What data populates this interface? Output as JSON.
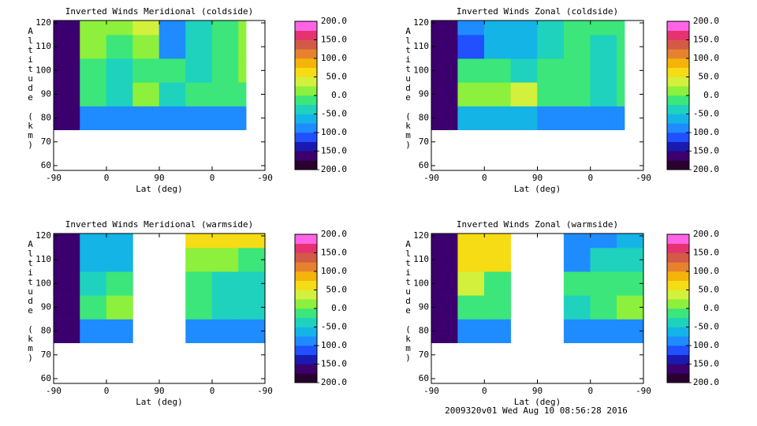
{
  "chart_data": [
    {
      "type": "heatmap",
      "title": "Inverted Winds Meridional (coldside)",
      "xlabel": "Lat (deg)",
      "ylabel": "Altitude (km)",
      "xlim": [
        0,
        360
      ],
      "xticks": [
        {
          "value": 0,
          "label": "-90"
        },
        {
          "value": 90,
          "label": "0"
        },
        {
          "value": 180,
          "label": "90"
        },
        {
          "value": 270,
          "label": "0"
        },
        {
          "value": 360,
          "label": "-90"
        }
      ],
      "ylim": [
        58,
        121
      ],
      "yticks": [
        60,
        70,
        80,
        90,
        100,
        110,
        120
      ],
      "x_edges": [
        0,
        45,
        90,
        135,
        180,
        225,
        270,
        315,
        328
      ],
      "y_edges": [
        75,
        85,
        95,
        105,
        115,
        121
      ],
      "values": [
        [
          -175,
          -80,
          -80,
          -80,
          -90,
          -90,
          -90,
          -80
        ],
        [
          -175,
          -20,
          -40,
          0,
          -30,
          -20,
          -10,
          -10
        ],
        [
          -175,
          -10,
          -50,
          -10,
          -20,
          -40,
          -10,
          10
        ],
        [
          -175,
          10,
          -20,
          10,
          -100,
          -30,
          -20,
          20
        ],
        [
          -175,
          20,
          10,
          30,
          -90,
          -40,
          -20,
          10
        ]
      ],
      "colorbar": {
        "lim": [
          -200,
          200
        ],
        "ticks": [
          {
            "value": 200,
            "label": "200.0"
          },
          {
            "value": 150,
            "label": "150.0"
          },
          {
            "value": 100,
            "label": "100.0"
          },
          {
            "value": 50,
            "label": "50.0"
          },
          {
            "value": 0,
            "label": "0.0"
          },
          {
            "value": -50,
            "label": "-50.0"
          },
          {
            "value": -100,
            "label": "-100.0"
          },
          {
            "value": -150,
            "label": "-150.0"
          },
          {
            "value": -200,
            "label": "-200.0"
          }
        ],
        "colors": [
          "#2a0030",
          "#3c006e",
          "#1a1ab0",
          "#2050ff",
          "#1e8cff",
          "#14b4e6",
          "#1ed2be",
          "#3ce67a",
          "#8cf03c",
          "#d2f03c",
          "#f5dc14",
          "#f5b40a",
          "#e6822d",
          "#d25a46",
          "#e6326e",
          "#ff64e6"
        ]
      }
    },
    {
      "type": "heatmap",
      "title": "Inverted Winds Zonal (coldside)",
      "xlabel": "Lat (deg)",
      "ylabel": "Altitude (km)",
      "xlim": [
        0,
        360
      ],
      "xticks": [
        {
          "value": 0,
          "label": "-90"
        },
        {
          "value": 90,
          "label": "0"
        },
        {
          "value": 180,
          "label": "90"
        },
        {
          "value": 270,
          "label": "0"
        },
        {
          "value": 360,
          "label": "-90"
        }
      ],
      "ylim": [
        58,
        121
      ],
      "yticks": [
        60,
        70,
        80,
        90,
        100,
        110,
        120
      ],
      "x_edges": [
        0,
        45,
        90,
        135,
        180,
        225,
        270,
        315,
        328
      ],
      "y_edges": [
        75,
        85,
        95,
        105,
        115,
        121
      ],
      "values": [
        [
          -175,
          -70,
          -60,
          -60,
          -80,
          -80,
          -80,
          -80
        ],
        [
          -175,
          10,
          20,
          30,
          -20,
          -10,
          -30,
          -10
        ],
        [
          -175,
          -20,
          -10,
          -40,
          -20,
          -10,
          -30,
          -20
        ],
        [
          -175,
          -120,
          -60,
          -60,
          -40,
          -10,
          -30,
          -20
        ],
        [
          -175,
          -100,
          -60,
          -60,
          -30,
          -20,
          -20,
          -10
        ]
      ],
      "colorbar": {
        "lim": [
          -200,
          200
        ],
        "ticks": [
          {
            "value": 200,
            "label": "200.0"
          },
          {
            "value": 150,
            "label": "150.0"
          },
          {
            "value": 100,
            "label": "100.0"
          },
          {
            "value": 50,
            "label": "50.0"
          },
          {
            "value": 0,
            "label": "0.0"
          },
          {
            "value": -50,
            "label": "-50.0"
          },
          {
            "value": -100,
            "label": "-100.0"
          },
          {
            "value": -150,
            "label": "-150.0"
          },
          {
            "value": -200,
            "label": "-200.0"
          }
        ],
        "colors": [
          "#2a0030",
          "#3c006e",
          "#1a1ab0",
          "#2050ff",
          "#1e8cff",
          "#14b4e6",
          "#1ed2be",
          "#3ce67a",
          "#8cf03c",
          "#d2f03c",
          "#f5dc14",
          "#f5b40a",
          "#e6822d",
          "#d25a46",
          "#e6326e",
          "#ff64e6"
        ]
      }
    },
    {
      "type": "heatmap",
      "title": "Inverted Winds Meridional (warmside)",
      "xlabel": "Lat (deg)",
      "ylabel": "Altitude (km)",
      "xlim": [
        0,
        360
      ],
      "xticks": [
        {
          "value": 0,
          "label": "-90"
        },
        {
          "value": 90,
          "label": "0"
        },
        {
          "value": 180,
          "label": "90"
        },
        {
          "value": 270,
          "label": "0"
        },
        {
          "value": 360,
          "label": "-90"
        }
      ],
      "ylim": [
        58,
        121
      ],
      "yticks": [
        60,
        70,
        80,
        90,
        100,
        110,
        120
      ],
      "x_edges": [
        0,
        45,
        90,
        135,
        180,
        225,
        270,
        315,
        360
      ],
      "y_edges": [
        75,
        85,
        95,
        105,
        115,
        121
      ],
      "values": [
        [
          -175,
          -90,
          -90,
          null,
          null,
          -80,
          -80,
          -90
        ],
        [
          -175,
          -20,
          10,
          null,
          null,
          -20,
          -40,
          -30
        ],
        [
          -175,
          -40,
          -20,
          null,
          null,
          -10,
          -30,
          -40
        ],
        [
          -175,
          -60,
          -60,
          null,
          null,
          10,
          20,
          -10
        ],
        [
          -175,
          -70,
          -60,
          null,
          null,
          60,
          60,
          60
        ]
      ],
      "colorbar": {
        "lim": [
          -200,
          200
        ],
        "ticks": [
          {
            "value": 200,
            "label": "200.0"
          },
          {
            "value": 150,
            "label": "150.0"
          },
          {
            "value": 100,
            "label": "100.0"
          },
          {
            "value": 50,
            "label": "50.0"
          },
          {
            "value": 0,
            "label": "0.0"
          },
          {
            "value": -50,
            "label": "-50.0"
          },
          {
            "value": -100,
            "label": "-100.0"
          },
          {
            "value": -150,
            "label": "-150.0"
          },
          {
            "value": -200,
            "label": "-200.0"
          }
        ],
        "colors": [
          "#2a0030",
          "#3c006e",
          "#1a1ab0",
          "#2050ff",
          "#1e8cff",
          "#14b4e6",
          "#1ed2be",
          "#3ce67a",
          "#8cf03c",
          "#d2f03c",
          "#f5dc14",
          "#f5b40a",
          "#e6822d",
          "#d25a46",
          "#e6326e",
          "#ff64e6"
        ]
      }
    },
    {
      "type": "heatmap",
      "title": "Inverted Winds Zonal (warmside)",
      "xlabel": "Lat (deg)",
      "ylabel": "Altitude (km)",
      "xlim": [
        0,
        360
      ],
      "xticks": [
        {
          "value": 0,
          "label": "-90"
        },
        {
          "value": 90,
          "label": "0"
        },
        {
          "value": 180,
          "label": "90"
        },
        {
          "value": 270,
          "label": "0"
        },
        {
          "value": 360,
          "label": "-90"
        }
      ],
      "ylim": [
        58,
        121
      ],
      "yticks": [
        60,
        70,
        80,
        90,
        100,
        110,
        120
      ],
      "x_edges": [
        0,
        45,
        90,
        135,
        180,
        225,
        270,
        315,
        360
      ],
      "y_edges": [
        75,
        85,
        95,
        105,
        115,
        121
      ],
      "values": [
        [
          -175,
          -80,
          -80,
          null,
          null,
          -90,
          -90,
          -90
        ],
        [
          -175,
          -10,
          -20,
          null,
          null,
          -30,
          -10,
          20
        ],
        [
          -175,
          30,
          -10,
          null,
          null,
          -20,
          -10,
          -20
        ],
        [
          -175,
          60,
          60,
          null,
          null,
          -80,
          -40,
          -50
        ],
        [
          -175,
          70,
          70,
          null,
          null,
          -90,
          -80,
          -70
        ]
      ],
      "colorbar": {
        "lim": [
          -200,
          200
        ],
        "ticks": [
          {
            "value": 200,
            "label": "200.0"
          },
          {
            "value": 150,
            "label": "150.0"
          },
          {
            "value": 100,
            "label": "100.0"
          },
          {
            "value": 50,
            "label": "50.0"
          },
          {
            "value": 0,
            "label": "0.0"
          },
          {
            "value": -50,
            "label": "-50.0"
          },
          {
            "value": -100,
            "label": "-100.0"
          },
          {
            "value": -150,
            "label": "-150.0"
          },
          {
            "value": -200,
            "label": "-200.0"
          }
        ],
        "colors": [
          "#2a0030",
          "#3c006e",
          "#1a1ab0",
          "#2050ff",
          "#1e8cff",
          "#14b4e6",
          "#1ed2be",
          "#3ce67a",
          "#8cf03c",
          "#d2f03c",
          "#f5dc14",
          "#f5b40a",
          "#e6822d",
          "#d25a46",
          "#e6326e",
          "#ff64e6"
        ]
      }
    }
  ],
  "footer": "2009320v01 Wed Aug 10 08:56:28 2016"
}
